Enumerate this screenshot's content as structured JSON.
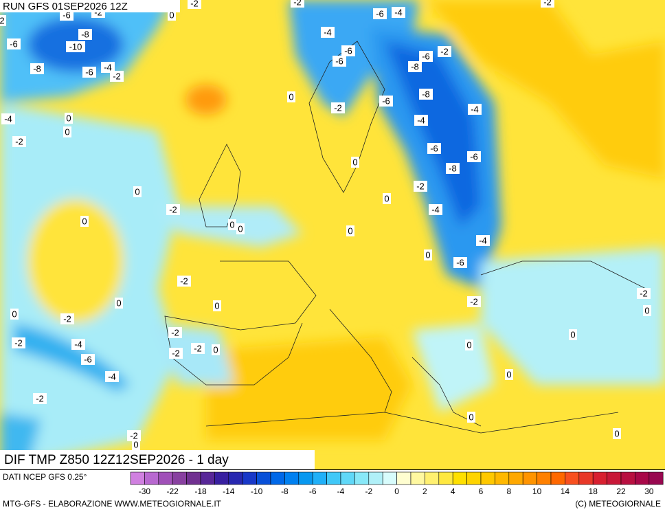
{
  "header": {
    "run": "RUN GFS 01SEP2026 12Z"
  },
  "map": {
    "title": "DIF TMP Z850 12Z12SEP2026 - 1 day",
    "contour_labels": [
      "-6",
      "-2",
      "-2",
      "0",
      "-2",
      "-2",
      "2",
      "-8",
      "-6",
      "-10",
      "-8",
      "-6",
      "-4",
      "-2",
      "-6",
      "-4",
      "-4",
      "-6",
      "-6",
      "-6",
      "-2",
      "-8",
      "-8",
      "0",
      "-6",
      "-2",
      "-4",
      "-4",
      "-4",
      "0",
      "0",
      "-2",
      "-6",
      "-6",
      "0",
      "-8",
      "-2",
      "0",
      "0",
      "-2",
      "-4",
      "0",
      "0",
      "0",
      "0",
      "-4",
      "0",
      "-6",
      "-2",
      "0",
      "0",
      "-2",
      "-2",
      "0",
      "0",
      "-2",
      "-2",
      "0",
      "-2",
      "-4",
      "-2",
      "-2",
      "0",
      "0",
      "-6",
      "-4",
      "0",
      "-2",
      "0",
      "-2",
      "0",
      "0"
    ]
  },
  "legend": {
    "source": "DATI NCEP GFS 0.25°",
    "colors": [
      "#d080e0",
      "#b868d0",
      "#a050b8",
      "#8840a0",
      "#703090",
      "#582898",
      "#3820a0",
      "#2828b0",
      "#1838c8",
      "#0850d8",
      "#0068e8",
      "#0080f0",
      "#0898f0",
      "#20b0f8",
      "#40c8f8",
      "#60d8f8",
      "#88e8f8",
      "#b0f0f8",
      "#d8fcfc",
      "#fffed0",
      "#fff8a0",
      "#fff070",
      "#ffe840",
      "#ffe000",
      "#ffd400",
      "#ffc800",
      "#ffb800",
      "#ffa800",
      "#ff9400",
      "#ff8000",
      "#ff6800",
      "#f85020",
      "#e83828",
      "#d82030",
      "#c81838",
      "#b81040",
      "#a80848",
      "#980850"
    ],
    "labels": [
      "-30",
      "-22",
      "-18",
      "-14",
      "-10",
      "-8",
      "-6",
      "-4",
      "-2",
      "0",
      "2",
      "4",
      "6",
      "8",
      "10",
      "14",
      "18",
      "22",
      "30"
    ]
  },
  "footer": {
    "credit": "MTG-GFS - ELABORAZIONE WWW.METEOGIORNALE.IT",
    "copyright": "(C) METEOGIORNALE"
  }
}
